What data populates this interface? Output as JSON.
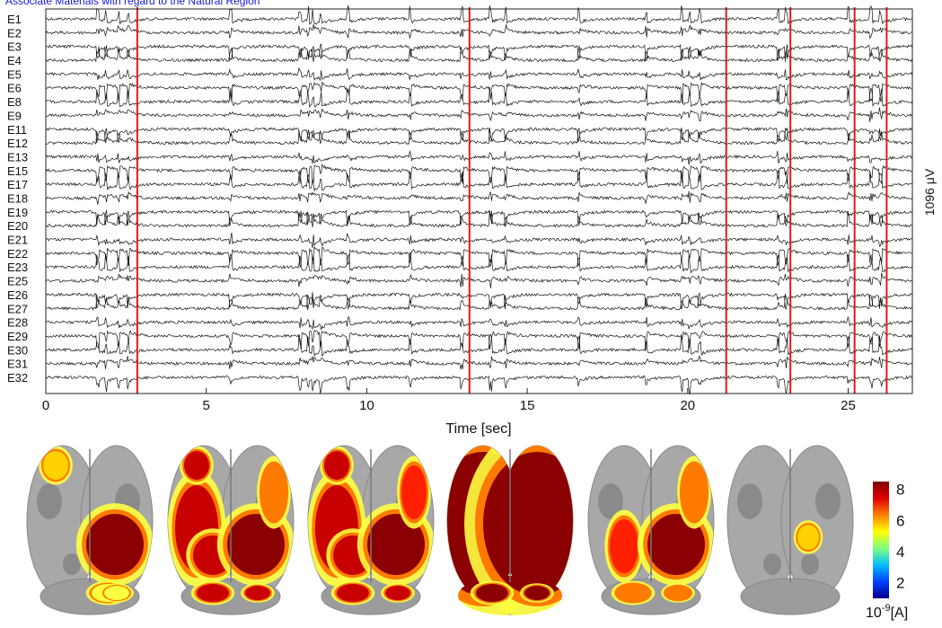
{
  "top_link_text": "Associate Materials with regard to the Natural Region",
  "chart_data": {
    "type": "line",
    "plot_kind": "multichannel EEG traces",
    "xlabel": "Time [sec]",
    "xlim": [
      0,
      27
    ],
    "xticks": [
      0,
      5,
      10,
      15,
      20,
      25
    ],
    "xtick_labels": [
      "0",
      "5",
      "10",
      "15",
      "20",
      "25"
    ],
    "channels": [
      "E1",
      "E2",
      "E3",
      "E4",
      "E5",
      "E6",
      "E8",
      "E9",
      "E11",
      "E12",
      "E13",
      "E15",
      "E17",
      "E18",
      "E19",
      "E20",
      "E21",
      "E22",
      "E23",
      "E25",
      "E26",
      "E27",
      "E28",
      "E29",
      "E30",
      "E31",
      "E32"
    ],
    "scale_label": "1096 μV",
    "trace_color": "#111111",
    "marker_color": "#e0191c",
    "spike_times": [
      1.6,
      1.85,
      2.25,
      2.55,
      5.75,
      7.9,
      8.15,
      8.3,
      8.55,
      9.4,
      11.35,
      12.95,
      13.85,
      14.3,
      16.6,
      18.7,
      19.8,
      20.05,
      20.35,
      22.8,
      23.05,
      25.0,
      25.7,
      26.0
    ],
    "marker_times": [
      2.85,
      13.2,
      21.2,
      23.2,
      25.2,
      26.2
    ],
    "grid": false,
    "legend": "none"
  },
  "brain_maps": {
    "count": 6,
    "view": "dorsal cortical surface",
    "colorbar": {
      "ticks": [
        "8",
        "6",
        "4",
        "2"
      ],
      "unit": "10",
      "unit_exponent": "-9",
      "unit_suffix": "[A]",
      "colors": [
        "#7f0000",
        "#e00000",
        "#ff7f00",
        "#ffff00",
        "#7fff7f",
        "#00bfff",
        "#0040ff",
        "#00008f"
      ],
      "range": [
        1,
        8.5
      ]
    },
    "activations": [
      [
        {
          "hemi": "R",
          "area": "posterior-lateral",
          "level": 0.95
        },
        {
          "hemi": "L",
          "area": "frontal-tip",
          "level": 0.4
        },
        {
          "hemi": "R",
          "area": "cerebellar",
          "level": 0.35
        }
      ],
      [
        {
          "hemi": "L",
          "area": "lateral",
          "level": 0.85
        },
        {
          "hemi": "R",
          "area": "posterior-lateral",
          "level": 1.0
        },
        {
          "hemi": "L",
          "area": "frontal-tip",
          "level": 0.9
        },
        {
          "hemi": "R",
          "area": "frontal-lateral",
          "level": 0.6
        },
        {
          "hemi": "B",
          "area": "cerebellar",
          "level": 0.85
        }
      ],
      [
        {
          "hemi": "L",
          "area": "lateral",
          "level": 0.85
        },
        {
          "hemi": "R",
          "area": "posterior-lateral",
          "level": 1.0
        },
        {
          "hemi": "L",
          "area": "frontal-tip",
          "level": 0.9
        },
        {
          "hemi": "R",
          "area": "frontal-lateral",
          "level": 0.7
        },
        {
          "hemi": "B",
          "area": "cerebellar",
          "level": 0.85
        }
      ],
      [
        {
          "hemi": "L",
          "area": "whole",
          "level": 1.0
        },
        {
          "hemi": "R",
          "area": "whole",
          "level": 1.0
        },
        {
          "hemi": "B",
          "area": "cerebellar",
          "level": 1.0
        }
      ],
      [
        {
          "hemi": "L",
          "area": "medial",
          "level": 0.7
        },
        {
          "hemi": "R",
          "area": "posterior-lateral",
          "level": 0.95
        },
        {
          "hemi": "R",
          "area": "frontal-lateral",
          "level": 0.55
        },
        {
          "hemi": "B",
          "area": "cerebellar",
          "level": 0.6
        }
      ],
      [
        {
          "hemi": "R",
          "area": "small-spot",
          "level": 0.45
        }
      ]
    ]
  }
}
